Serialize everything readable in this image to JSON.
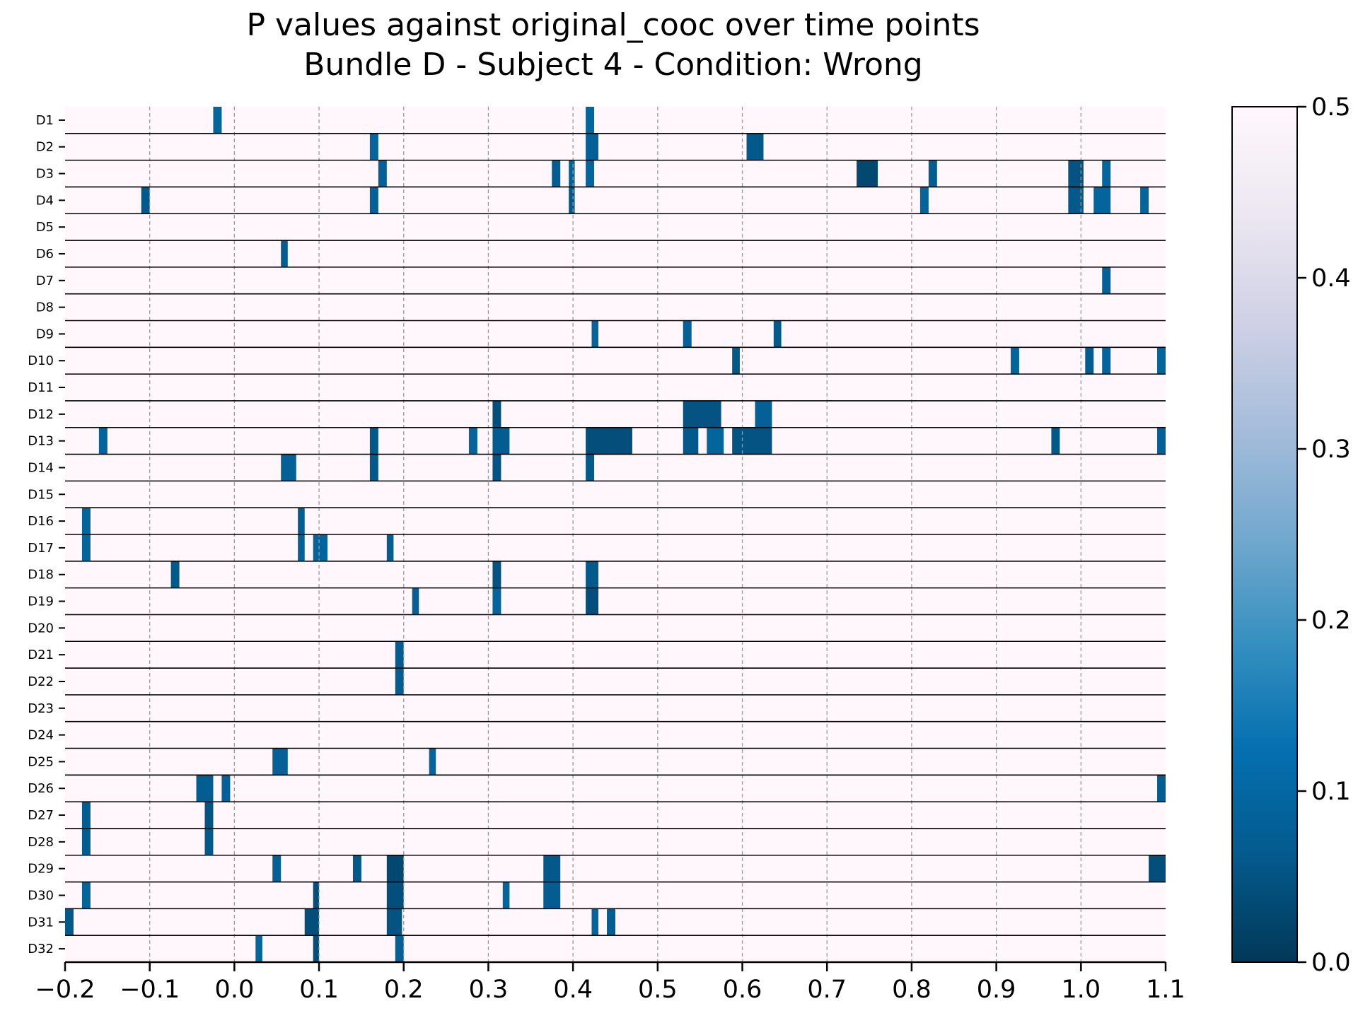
{
  "chart_data": {
    "type": "heatmap",
    "title": "P values against original_cooc over time points",
    "subtitle": "Bundle D - Subject 4 - Condition: Wrong",
    "xlabel": "",
    "ylabel": "",
    "xlim": [
      -0.2,
      1.1
    ],
    "xticks": [
      -0.2,
      -0.1,
      0.0,
      0.1,
      0.2,
      0.3,
      0.4,
      0.5,
      0.6,
      0.7,
      0.8,
      0.9,
      1.0,
      1.1
    ],
    "xtick_labels": [
      "−0.2",
      "−0.1",
      "0.0",
      "0.1",
      "0.2",
      "0.3",
      "0.4",
      "0.5",
      "0.6",
      "0.7",
      "0.8",
      "0.9",
      "1.0",
      "1.1"
    ],
    "grid": "vertical dashed",
    "background_value": 0.5,
    "colorbar": {
      "colormap": "PuBu_r",
      "range": [
        0.0,
        0.5
      ],
      "ticks": [
        0.0,
        0.1,
        0.2,
        0.3,
        0.4,
        0.5
      ],
      "tick_labels": [
        "0.0",
        "0.1",
        "0.2",
        "0.3",
        "0.4",
        "0.5"
      ]
    },
    "rows": [
      {
        "label": "D1",
        "segments": [
          {
            "x0": -0.025,
            "x1": -0.015,
            "p": 0.09
          },
          {
            "x0": 0.415,
            "x1": 0.425,
            "p": 0.09
          }
        ]
      },
      {
        "label": "D2",
        "segments": [
          {
            "x0": 0.16,
            "x1": 0.17,
            "p": 0.09
          },
          {
            "x0": 0.415,
            "x1": 0.43,
            "p": 0.08
          },
          {
            "x0": 0.605,
            "x1": 0.625,
            "p": 0.06
          }
        ]
      },
      {
        "label": "D3",
        "segments": [
          {
            "x0": 0.17,
            "x1": 0.18,
            "p": 0.08
          },
          {
            "x0": 0.375,
            "x1": 0.385,
            "p": 0.07
          },
          {
            "x0": 0.395,
            "x1": 0.402,
            "p": 0.08
          },
          {
            "x0": 0.415,
            "x1": 0.425,
            "p": 0.09
          },
          {
            "x0": 0.735,
            "x1": 0.76,
            "p": 0.03
          },
          {
            "x0": 0.82,
            "x1": 0.83,
            "p": 0.07
          },
          {
            "x0": 0.985,
            "x1": 1.003,
            "p": 0.05
          },
          {
            "x0": 1.025,
            "x1": 1.035,
            "p": 0.09
          }
        ]
      },
      {
        "label": "D4",
        "segments": [
          {
            "x0": -0.11,
            "x1": -0.1,
            "p": 0.06
          },
          {
            "x0": 0.16,
            "x1": 0.17,
            "p": 0.08
          },
          {
            "x0": 0.395,
            "x1": 0.402,
            "p": 0.06
          },
          {
            "x0": 0.81,
            "x1": 0.82,
            "p": 0.09
          },
          {
            "x0": 0.985,
            "x1": 1.003,
            "p": 0.06
          },
          {
            "x0": 1.015,
            "x1": 1.035,
            "p": 0.09
          },
          {
            "x0": 1.07,
            "x1": 1.08,
            "p": 0.09
          }
        ]
      },
      {
        "label": "D5",
        "segments": []
      },
      {
        "label": "D6",
        "segments": [
          {
            "x0": 0.055,
            "x1": 0.063,
            "p": 0.07
          }
        ]
      },
      {
        "label": "D7",
        "segments": [
          {
            "x0": 1.025,
            "x1": 1.035,
            "p": 0.08
          }
        ]
      },
      {
        "label": "D8",
        "segments": []
      },
      {
        "label": "D9",
        "segments": [
          {
            "x0": 0.422,
            "x1": 0.43,
            "p": 0.09
          },
          {
            "x0": 0.53,
            "x1": 0.54,
            "p": 0.08
          },
          {
            "x0": 0.637,
            "x1": 0.646,
            "p": 0.06
          }
        ]
      },
      {
        "label": "D10",
        "segments": [
          {
            "x0": 0.588,
            "x1": 0.597,
            "p": 0.06
          },
          {
            "x0": 0.917,
            "x1": 0.927,
            "p": 0.09
          },
          {
            "x0": 1.005,
            "x1": 1.015,
            "p": 0.07
          },
          {
            "x0": 1.025,
            "x1": 1.035,
            "p": 0.09
          },
          {
            "x0": 1.09,
            "x1": 1.1,
            "p": 0.09
          }
        ]
      },
      {
        "label": "D11",
        "segments": []
      },
      {
        "label": "D12",
        "segments": [
          {
            "x0": 0.305,
            "x1": 0.315,
            "p": 0.04
          },
          {
            "x0": 0.53,
            "x1": 0.575,
            "p": 0.05
          },
          {
            "x0": 0.615,
            "x1": 0.635,
            "p": 0.08
          }
        ]
      },
      {
        "label": "D13",
        "segments": [
          {
            "x0": -0.16,
            "x1": -0.15,
            "p": 0.09
          },
          {
            "x0": 0.16,
            "x1": 0.17,
            "p": 0.06
          },
          {
            "x0": 0.277,
            "x1": 0.287,
            "p": 0.09
          },
          {
            "x0": 0.305,
            "x1": 0.325,
            "p": 0.07
          },
          {
            "x0": 0.415,
            "x1": 0.47,
            "p": 0.04
          },
          {
            "x0": 0.53,
            "x1": 0.548,
            "p": 0.06
          },
          {
            "x0": 0.558,
            "x1": 0.578,
            "p": 0.09
          },
          {
            "x0": 0.588,
            "x1": 0.635,
            "p": 0.05
          },
          {
            "x0": 0.965,
            "x1": 0.975,
            "p": 0.06
          },
          {
            "x0": 1.09,
            "x1": 1.1,
            "p": 0.08
          }
        ]
      },
      {
        "label": "D14",
        "segments": [
          {
            "x0": 0.055,
            "x1": 0.073,
            "p": 0.08
          },
          {
            "x0": 0.16,
            "x1": 0.17,
            "p": 0.06
          },
          {
            "x0": 0.305,
            "x1": 0.315,
            "p": 0.05
          },
          {
            "x0": 0.415,
            "x1": 0.425,
            "p": 0.06
          }
        ]
      },
      {
        "label": "D15",
        "segments": []
      },
      {
        "label": "D16",
        "segments": [
          {
            "x0": -0.18,
            "x1": -0.17,
            "p": 0.09
          },
          {
            "x0": 0.075,
            "x1": 0.083,
            "p": 0.07
          }
        ]
      },
      {
        "label": "D17",
        "segments": [
          {
            "x0": -0.18,
            "x1": -0.17,
            "p": 0.09
          },
          {
            "x0": 0.075,
            "x1": 0.083,
            "p": 0.08
          },
          {
            "x0": 0.093,
            "x1": 0.11,
            "p": 0.09
          },
          {
            "x0": 0.18,
            "x1": 0.188,
            "p": 0.07
          }
        ]
      },
      {
        "label": "D18",
        "segments": [
          {
            "x0": -0.075,
            "x1": -0.065,
            "p": 0.06
          },
          {
            "x0": 0.305,
            "x1": 0.315,
            "p": 0.05
          },
          {
            "x0": 0.415,
            "x1": 0.43,
            "p": 0.06
          }
        ]
      },
      {
        "label": "D19",
        "segments": [
          {
            "x0": 0.21,
            "x1": 0.218,
            "p": 0.08
          },
          {
            "x0": 0.305,
            "x1": 0.315,
            "p": 0.09
          },
          {
            "x0": 0.415,
            "x1": 0.43,
            "p": 0.04
          }
        ]
      },
      {
        "label": "D20",
        "segments": []
      },
      {
        "label": "D21",
        "segments": [
          {
            "x0": 0.19,
            "x1": 0.2,
            "p": 0.07
          }
        ]
      },
      {
        "label": "D22",
        "segments": [
          {
            "x0": 0.19,
            "x1": 0.2,
            "p": 0.07
          }
        ]
      },
      {
        "label": "D23",
        "segments": []
      },
      {
        "label": "D24",
        "segments": []
      },
      {
        "label": "D25",
        "segments": [
          {
            "x0": 0.045,
            "x1": 0.063,
            "p": 0.08
          },
          {
            "x0": 0.23,
            "x1": 0.238,
            "p": 0.09
          }
        ]
      },
      {
        "label": "D26",
        "segments": [
          {
            "x0": -0.045,
            "x1": -0.025,
            "p": 0.07
          },
          {
            "x0": -0.015,
            "x1": -0.005,
            "p": 0.08
          },
          {
            "x0": 1.09,
            "x1": 1.1,
            "p": 0.07
          }
        ]
      },
      {
        "label": "D27",
        "segments": [
          {
            "x0": -0.18,
            "x1": -0.17,
            "p": 0.07
          },
          {
            "x0": -0.035,
            "x1": -0.025,
            "p": 0.05
          }
        ]
      },
      {
        "label": "D28",
        "segments": [
          {
            "x0": -0.18,
            "x1": -0.17,
            "p": 0.07
          },
          {
            "x0": -0.035,
            "x1": -0.025,
            "p": 0.06
          }
        ]
      },
      {
        "label": "D29",
        "segments": [
          {
            "x0": 0.045,
            "x1": 0.055,
            "p": 0.08
          },
          {
            "x0": 0.14,
            "x1": 0.15,
            "p": 0.06
          },
          {
            "x0": 0.18,
            "x1": 0.2,
            "p": 0.03
          },
          {
            "x0": 0.365,
            "x1": 0.385,
            "p": 0.06
          },
          {
            "x0": 1.08,
            "x1": 1.1,
            "p": 0.04
          }
        ]
      },
      {
        "label": "D30",
        "segments": [
          {
            "x0": -0.18,
            "x1": -0.17,
            "p": 0.09
          },
          {
            "x0": 0.093,
            "x1": 0.1,
            "p": 0.04
          },
          {
            "x0": 0.18,
            "x1": 0.2,
            "p": 0.04
          },
          {
            "x0": 0.317,
            "x1": 0.325,
            "p": 0.09
          },
          {
            "x0": 0.365,
            "x1": 0.385,
            "p": 0.07
          }
        ]
      },
      {
        "label": "D31",
        "segments": [
          {
            "x0": -0.2,
            "x1": -0.19,
            "p": 0.06
          },
          {
            "x0": 0.083,
            "x1": 0.1,
            "p": 0.04
          },
          {
            "x0": 0.18,
            "x1": 0.198,
            "p": 0.05
          },
          {
            "x0": 0.422,
            "x1": 0.43,
            "p": 0.09
          },
          {
            "x0": 0.44,
            "x1": 0.45,
            "p": 0.07
          }
        ]
      },
      {
        "label": "D32",
        "segments": [
          {
            "x0": 0.025,
            "x1": 0.033,
            "p": 0.09
          },
          {
            "x0": 0.093,
            "x1": 0.1,
            "p": 0.04
          },
          {
            "x0": 0.19,
            "x1": 0.2,
            "p": 0.08
          }
        ]
      }
    ]
  }
}
